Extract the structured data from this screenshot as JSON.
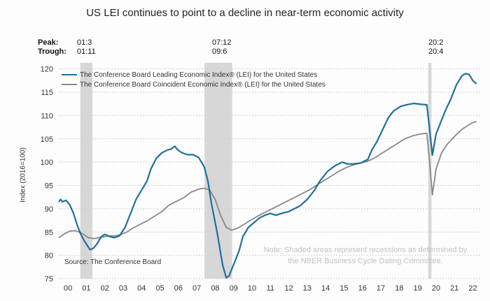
{
  "chart_data": {
    "type": "line",
    "title": "US LEI continues to point to a decline in near-term economic activity",
    "ylabel": "Index (2016=100)",
    "xlabel": "",
    "ylim": [
      75,
      121
    ],
    "xlim": [
      2000,
      2022.9
    ],
    "y_ticks": [
      75,
      80,
      85,
      90,
      95,
      100,
      105,
      110,
      115,
      120
    ],
    "x_ticks": [
      "00",
      "01",
      "02",
      "03",
      "04",
      "05",
      "06",
      "07",
      "08",
      "09",
      "10",
      "11",
      "12",
      "13",
      "14",
      "15",
      "16",
      "17",
      "18",
      "19",
      "20",
      "21",
      "22"
    ],
    "recession_header": {
      "peak": "Peak:",
      "trough": "Trough:"
    },
    "recessions": [
      {
        "peak": "01:3",
        "trough": "01:11",
        "start": 2001.17,
        "end": 2001.83
      },
      {
        "peak": "07:12",
        "trough": "09:6",
        "start": 2007.92,
        "end": 2009.42
      },
      {
        "peak": "20:2",
        "trough": "20:4",
        "start": 2020.08,
        "end": 2020.25
      }
    ],
    "series": [
      {
        "name": "The Conference Board Leading Economic Index® (LEI) for the United States",
        "color": "#1f6f9e",
        "points": [
          [
            2000.0,
            91.5
          ],
          [
            2000.1,
            92.0
          ],
          [
            2000.2,
            91.5
          ],
          [
            2000.4,
            91.8
          ],
          [
            2000.6,
            90.8
          ],
          [
            2000.8,
            89.0
          ],
          [
            2001.0,
            86.5
          ],
          [
            2001.2,
            84.5
          ],
          [
            2001.4,
            83.0
          ],
          [
            2001.6,
            81.8
          ],
          [
            2001.7,
            81.2
          ],
          [
            2001.9,
            81.6
          ],
          [
            2002.1,
            82.6
          ],
          [
            2002.3,
            84.0
          ],
          [
            2002.5,
            84.5
          ],
          [
            2002.8,
            84.0
          ],
          [
            2003.0,
            83.8
          ],
          [
            2003.3,
            84.2
          ],
          [
            2003.6,
            86.0
          ],
          [
            2003.9,
            89.0
          ],
          [
            2004.2,
            92.0
          ],
          [
            2004.5,
            94.0
          ],
          [
            2004.8,
            96.0
          ],
          [
            2005.0,
            98.5
          ],
          [
            2005.3,
            100.8
          ],
          [
            2005.6,
            102.0
          ],
          [
            2005.9,
            102.6
          ],
          [
            2006.1,
            102.8
          ],
          [
            2006.3,
            103.4
          ],
          [
            2006.5,
            102.5
          ],
          [
            2006.7,
            102.0
          ],
          [
            2007.0,
            101.6
          ],
          [
            2007.3,
            101.6
          ],
          [
            2007.6,
            101.0
          ],
          [
            2007.9,
            99.0
          ],
          [
            2008.1,
            96.0
          ],
          [
            2008.3,
            91.0
          ],
          [
            2008.6,
            85.0
          ],
          [
            2008.9,
            78.0
          ],
          [
            2009.1,
            75.2
          ],
          [
            2009.25,
            75.6
          ],
          [
            2009.5,
            78.0
          ],
          [
            2009.8,
            81.0
          ],
          [
            2010.0,
            84.0
          ],
          [
            2010.3,
            86.0
          ],
          [
            2010.6,
            87.0
          ],
          [
            2010.9,
            88.0
          ],
          [
            2011.2,
            88.6
          ],
          [
            2011.5,
            89.0
          ],
          [
            2011.8,
            88.6
          ],
          [
            2012.1,
            89.0
          ],
          [
            2012.5,
            89.4
          ],
          [
            2012.8,
            90.0
          ],
          [
            2013.1,
            90.6
          ],
          [
            2013.5,
            92.0
          ],
          [
            2013.9,
            94.0
          ],
          [
            2014.2,
            96.0
          ],
          [
            2014.6,
            98.0
          ],
          [
            2015.0,
            99.2
          ],
          [
            2015.4,
            100.0
          ],
          [
            2015.7,
            99.6
          ],
          [
            2016.0,
            99.6
          ],
          [
            2016.4,
            99.8
          ],
          [
            2016.8,
            100.6
          ],
          [
            2017.0,
            102.5
          ],
          [
            2017.3,
            104.5
          ],
          [
            2017.6,
            107.0
          ],
          [
            2017.9,
            109.5
          ],
          [
            2018.2,
            111.0
          ],
          [
            2018.6,
            112.0
          ],
          [
            2019.0,
            112.4
          ],
          [
            2019.3,
            112.6
          ],
          [
            2019.7,
            112.4
          ],
          [
            2020.0,
            112.3
          ],
          [
            2020.15,
            107.0
          ],
          [
            2020.3,
            101.5
          ],
          [
            2020.5,
            106.0
          ],
          [
            2020.8,
            109.0
          ],
          [
            2021.0,
            111.0
          ],
          [
            2021.3,
            113.5
          ],
          [
            2021.6,
            116.5
          ],
          [
            2021.9,
            118.5
          ],
          [
            2022.1,
            119.0
          ],
          [
            2022.3,
            118.8
          ],
          [
            2022.5,
            117.5
          ],
          [
            2022.7,
            116.8
          ]
        ]
      },
      {
        "name": "The Conference Board Coincident Economic Index® (LEI) for the United States",
        "color": "#888888",
        "points": [
          [
            2000.0,
            83.8
          ],
          [
            2000.3,
            84.6
          ],
          [
            2000.6,
            85.2
          ],
          [
            2000.9,
            85.3
          ],
          [
            2001.1,
            85.0
          ],
          [
            2001.3,
            84.6
          ],
          [
            2001.6,
            83.8
          ],
          [
            2001.9,
            83.6
          ],
          [
            2002.2,
            83.8
          ],
          [
            2002.5,
            84.0
          ],
          [
            2002.8,
            84.2
          ],
          [
            2003.1,
            84.2
          ],
          [
            2003.4,
            84.5
          ],
          [
            2003.7,
            85.0
          ],
          [
            2004.0,
            85.8
          ],
          [
            2004.4,
            86.6
          ],
          [
            2004.8,
            87.4
          ],
          [
            2005.2,
            88.4
          ],
          [
            2005.6,
            89.4
          ],
          [
            2006.0,
            90.8
          ],
          [
            2006.4,
            91.6
          ],
          [
            2006.8,
            92.4
          ],
          [
            2007.2,
            93.6
          ],
          [
            2007.6,
            94.2
          ],
          [
            2007.9,
            94.4
          ],
          [
            2008.2,
            94.0
          ],
          [
            2008.5,
            92.0
          ],
          [
            2008.8,
            88.5
          ],
          [
            2009.1,
            86.0
          ],
          [
            2009.4,
            85.4
          ],
          [
            2009.7,
            85.8
          ],
          [
            2010.0,
            86.5
          ],
          [
            2010.4,
            87.5
          ],
          [
            2010.8,
            88.4
          ],
          [
            2011.2,
            89.2
          ],
          [
            2011.6,
            90.0
          ],
          [
            2012.0,
            90.8
          ],
          [
            2012.4,
            91.6
          ],
          [
            2012.8,
            92.4
          ],
          [
            2013.2,
            93.2
          ],
          [
            2013.6,
            94.0
          ],
          [
            2014.0,
            95.0
          ],
          [
            2014.4,
            96.0
          ],
          [
            2014.8,
            97.0
          ],
          [
            2015.2,
            98.0
          ],
          [
            2015.6,
            98.8
          ],
          [
            2016.0,
            99.4
          ],
          [
            2016.4,
            99.8
          ],
          [
            2016.8,
            100.2
          ],
          [
            2017.2,
            101.0
          ],
          [
            2017.6,
            102.0
          ],
          [
            2018.0,
            103.0
          ],
          [
            2018.4,
            104.0
          ],
          [
            2018.8,
            105.0
          ],
          [
            2019.2,
            105.6
          ],
          [
            2019.6,
            106.0
          ],
          [
            2020.0,
            106.2
          ],
          [
            2020.15,
            100.0
          ],
          [
            2020.3,
            93.0
          ],
          [
            2020.5,
            98.5
          ],
          [
            2020.8,
            102.0
          ],
          [
            2021.1,
            103.8
          ],
          [
            2021.5,
            105.5
          ],
          [
            2021.9,
            107.0
          ],
          [
            2022.2,
            107.8
          ],
          [
            2022.5,
            108.5
          ],
          [
            2022.7,
            108.7
          ]
        ]
      }
    ],
    "legend_position": "top-left"
  },
  "labels": {
    "source": "Source: The Conference Board",
    "note_line1": "Note: Shaded areas represent recessions as determined by",
    "note_line2": "the NBER Business Cycle Dating Committee."
  }
}
